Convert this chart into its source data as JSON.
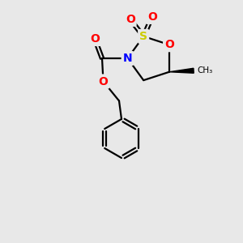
{
  "bg_color": "#e8e8e8",
  "atom_colors": {
    "O": "#ff0000",
    "S": "#cccc00",
    "N": "#0000ff",
    "C": "#000000"
  },
  "bond_color": "#000000",
  "bond_width": 1.6,
  "fig_size": [
    3.0,
    3.0
  ],
  "dpi": 100
}
